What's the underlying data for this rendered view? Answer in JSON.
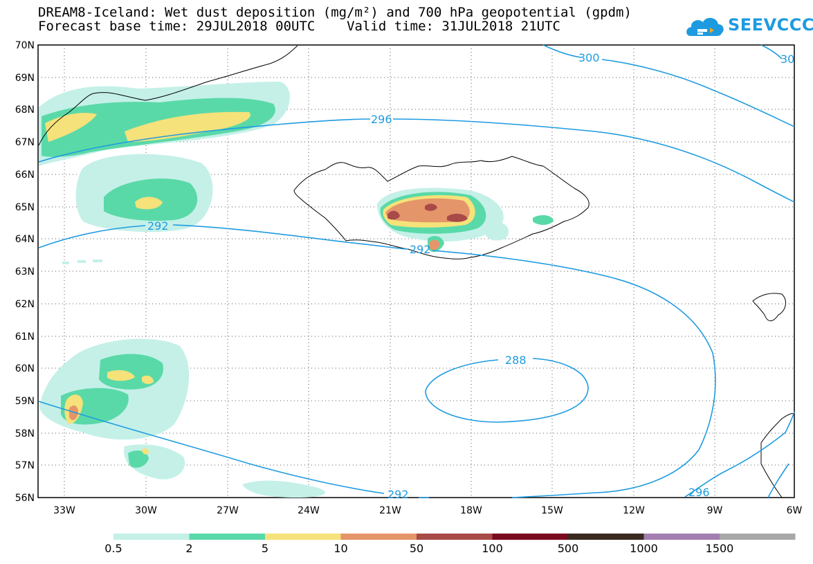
{
  "title_line1": "DREAM8-Iceland: Wet dust deposition (mg/m²) and 700 hPa geopotential (gpdm)",
  "title_line2": "Forecast base time: 29JUL2018 00UTC    Valid time: 31JUL2018 21UTC",
  "logo_text": "SEEVCCC",
  "lat_labels": [
    "70N",
    "69N",
    "68N",
    "67N",
    "66N",
    "65N",
    "64N",
    "63N",
    "62N",
    "61N",
    "60N",
    "59N",
    "58N",
    "57N",
    "56N"
  ],
  "lon_labels": [
    "33W",
    "30W",
    "27W",
    "24W",
    "21W",
    "18W",
    "15W",
    "12W",
    "9W",
    "6W"
  ],
  "contour_labels": [
    "300",
    "30",
    "296",
    "292",
    "292",
    "288",
    "292",
    "296"
  ],
  "colorbar": {
    "labels": [
      "0.5",
      "2",
      "5",
      "10",
      "50",
      "100",
      "500",
      "1000",
      "1500"
    ],
    "colors": [
      "#c4f0e8",
      "#5ad9a8",
      "#f5e27a",
      "#e5956a",
      "#a84a48",
      "#7a0a20",
      "#3a2a20",
      "#a27fb0",
      "#a8a8a8"
    ]
  },
  "colors": {
    "contour": "#1e9be0",
    "coast": "#000000"
  }
}
